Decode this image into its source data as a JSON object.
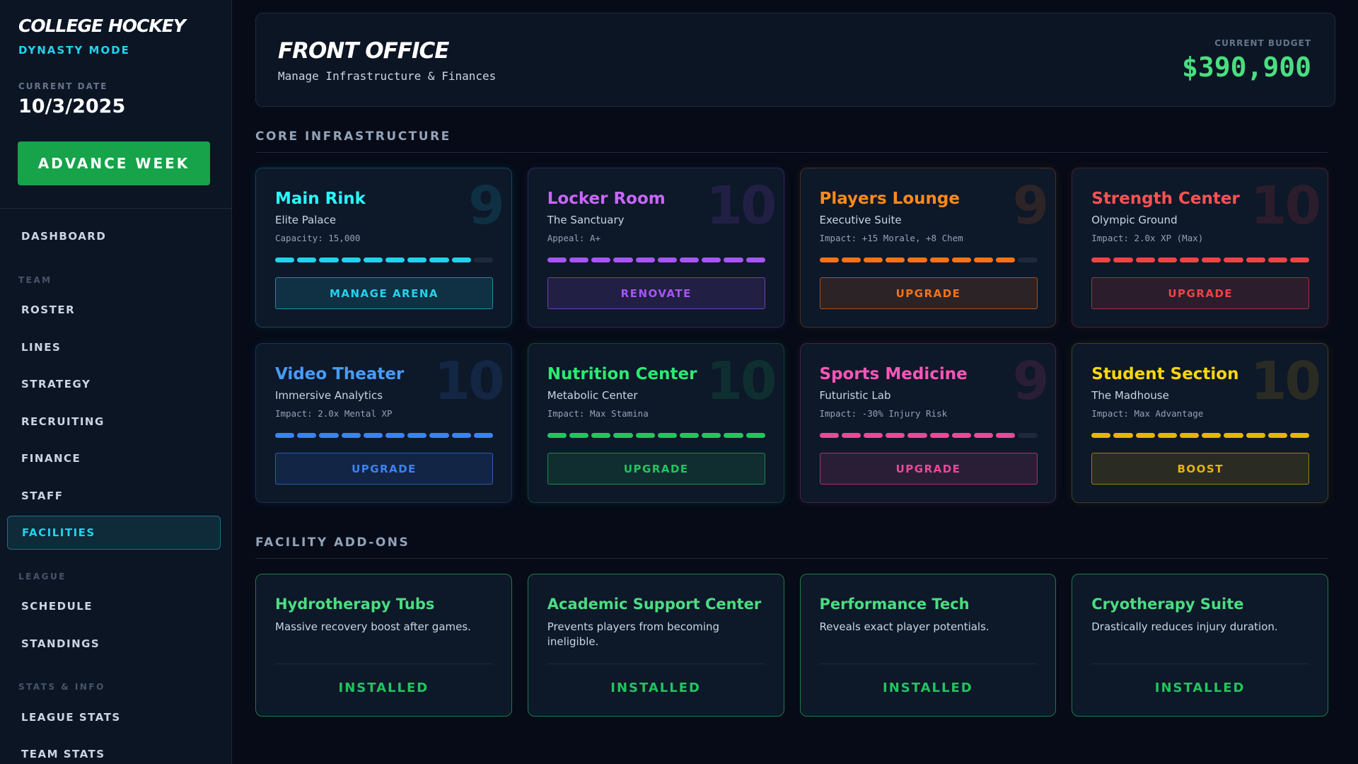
{
  "sidebar": {
    "title": "COLLEGE HOCKEY",
    "subtitle": "DYNASTY MODE",
    "date_label": "CURRENT DATE",
    "date": "10/3/2025",
    "advance_button": "ADVANCE WEEK",
    "nav_top": [
      "DASHBOARD"
    ],
    "nav_groups": [
      {
        "heading": "TEAM",
        "items": [
          "ROSTER",
          "LINES",
          "STRATEGY",
          "RECRUITING",
          "FINANCE",
          "STAFF",
          "FACILITIES"
        ]
      },
      {
        "heading": "LEAGUE",
        "items": [
          "SCHEDULE",
          "STANDINGS"
        ]
      },
      {
        "heading": "STATS & INFO",
        "items": [
          "LEAGUE STATS",
          "TEAM STATS"
        ]
      }
    ]
  },
  "header": {
    "title": "FRONT OFFICE",
    "subtitle": "Manage Infrastructure & Finances",
    "budget_label": "CURRENT BUDGET",
    "budget": "$390,900"
  },
  "core": {
    "title": "CORE INFRASTRUCTURE",
    "facilities": [
      {
        "name": "Main Rink",
        "tier": "Elite Palace",
        "detail": "Capacity: 15,000",
        "level": 9,
        "button": "MANAGE ARENA",
        "color": "#22d3ee"
      },
      {
        "name": "Locker Room",
        "tier": "The Sanctuary",
        "detail": "Appeal: A+",
        "level": 10,
        "button": "RENOVATE",
        "color": "#a855f7"
      },
      {
        "name": "Players Lounge",
        "tier": "Executive Suite",
        "detail": "Impact: +15 Morale, +8 Chem",
        "level": 9,
        "button": "UPGRADE",
        "color": "#f97316"
      },
      {
        "name": "Strength Center",
        "tier": "Olympic Ground",
        "detail": "Impact: 2.0x XP (Max)",
        "level": 10,
        "button": "UPGRADE",
        "color": "#ef4444"
      },
      {
        "name": "Video Theater",
        "tier": "Immersive Analytics",
        "detail": "Impact: 2.0x Mental XP",
        "level": 10,
        "button": "UPGRADE",
        "color": "#3b82f6"
      },
      {
        "name": "Nutrition Center",
        "tier": "Metabolic Center",
        "detail": "Impact: Max Stamina",
        "level": 10,
        "button": "UPGRADE",
        "color": "#22c55e"
      },
      {
        "name": "Sports Medicine",
        "tier": "Futuristic Lab",
        "detail": "Impact: -30% Injury Risk",
        "level": 9,
        "button": "UPGRADE",
        "color": "#ec4899"
      },
      {
        "name": "Student Section",
        "tier": "The Madhouse",
        "detail": "Impact: Max Advantage",
        "level": 10,
        "button": "BOOST",
        "color": "#eab308"
      }
    ]
  },
  "addons": {
    "title": "FACILITY ADD-ONS",
    "items": [
      {
        "name": "Hydrotherapy Tubs",
        "description": "Massive recovery boost after games.",
        "status": "INSTALLED"
      },
      {
        "name": "Academic Support Center",
        "description": "Prevents players from becoming ineligible.",
        "status": "INSTALLED"
      },
      {
        "name": "Performance Tech",
        "description": "Reveals exact player potentials.",
        "status": "INSTALLED"
      },
      {
        "name": "Cryotherapy Suite",
        "description": "Drastically reduces injury duration.",
        "status": "INSTALLED"
      }
    ]
  }
}
